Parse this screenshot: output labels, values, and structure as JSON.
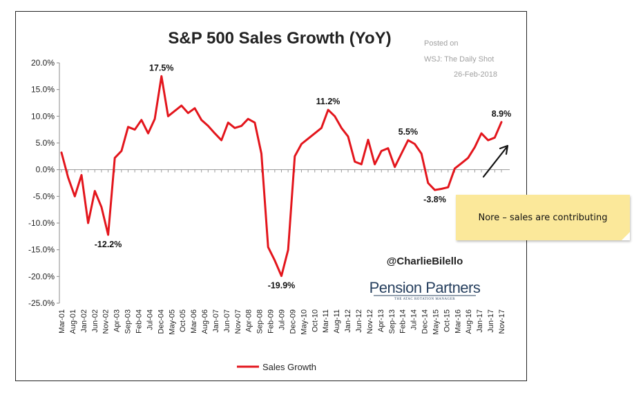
{
  "chart_data": {
    "type": "line",
    "title": "S&P 500 Sales Growth (YoY)",
    "posted": [
      "Posted on",
      "WSJ: The Daily Shot",
      "26-Feb-2018"
    ],
    "y_ticks": [
      "20.0%",
      "15.0%",
      "10.0%",
      "5.0%",
      "0.0%",
      "-5.0%",
      "-10.0%",
      "-15.0%",
      "-20.0%",
      "-25.0%"
    ],
    "ylim": [
      -25,
      20
    ],
    "x_ticks": [
      "Mar-01",
      "Aug-01",
      "Jan-02",
      "Jun-02",
      "Nov-02",
      "Apr-03",
      "Sep-03",
      "Feb-04",
      "Jul-04",
      "Dec-04",
      "May-05",
      "Oct-05",
      "Mar-06",
      "Aug-06",
      "Jan-07",
      "Jun-07",
      "Nov-07",
      "Apr-08",
      "Sep-08",
      "Feb-09",
      "Jul-09",
      "Dec-09",
      "May-10",
      "Oct-10",
      "Mar-11",
      "Aug-11",
      "Jan-12",
      "Jun-12",
      "Nov-12",
      "Apr-13",
      "Sep-13",
      "Feb-14",
      "Jul-14",
      "Dec-14",
      "May-15",
      "Oct-15",
      "Mar-16",
      "Aug-16",
      "Jan-17",
      "Jun-17",
      "Nov-17"
    ],
    "series": [
      {
        "name": "Sales Growth",
        "color": "#e3151c",
        "values": [
          3.2,
          -1.5,
          -5.0,
          -1.0,
          -10.0,
          -4.0,
          -7.0,
          -12.2,
          2.2,
          3.5,
          8.0,
          7.5,
          9.3,
          6.8,
          9.5,
          17.5,
          10.0,
          11.0,
          12.0,
          10.6,
          11.5,
          9.3,
          8.2,
          6.8,
          5.5,
          8.8,
          7.8,
          8.2,
          9.5,
          8.8,
          3.0,
          -14.5,
          -17.0,
          -19.9,
          -15.0,
          2.5,
          4.8,
          5.8,
          6.8,
          7.8,
          11.2,
          10.0,
          7.8,
          6.2,
          1.5,
          1.0,
          5.6,
          1.0,
          3.5,
          4.0,
          0.5,
          3.0,
          5.5,
          4.8,
          3.0,
          -2.5,
          -3.8,
          -3.6,
          -3.3,
          0.2,
          1.2,
          2.2,
          4.2,
          6.8,
          5.5,
          6.0,
          8.9
        ]
      }
    ],
    "annotations": [
      {
        "label": "17.5%",
        "index": 15
      },
      {
        "label": "-12.2%",
        "index": 7
      },
      {
        "label": "-19.9%",
        "index": 33
      },
      {
        "label": "11.2%",
        "index": 40
      },
      {
        "label": "5.5%",
        "index": 52
      },
      {
        "label": "-3.8%",
        "index": 56
      },
      {
        "label": "8.9%",
        "index": 66
      }
    ],
    "legend": "Sales Growth",
    "handle": "@CharlieBilello",
    "brand": "Pension Partners",
    "brand_tagline": "THE ATAC ROTATION MANAGER"
  },
  "note": "Nore – sales are contributing"
}
